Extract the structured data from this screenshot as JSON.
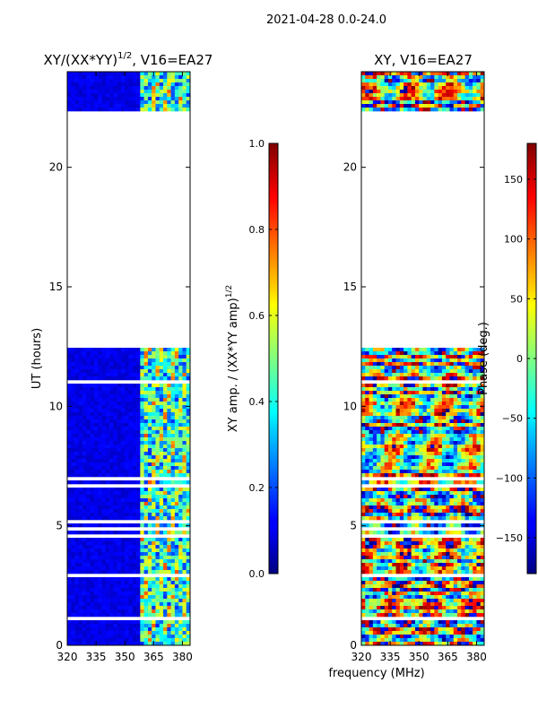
{
  "chart_data": {
    "suptitle": "2021-04-28 0.0-24.0",
    "xlabel": "frequency (MHz)",
    "panels": [
      {
        "title": "XY/(XX*YY)",
        "title_sup": "1/2",
        "title_suffix": ", V16=EA27",
        "type": "heatmap",
        "ylabel": "UT (hours)",
        "xlim": [
          320,
          384
        ],
        "ylim": [
          0,
          24
        ],
        "xticks": [
          320,
          335,
          350,
          365,
          380
        ],
        "yticks": [
          0,
          5,
          10,
          15,
          20
        ],
        "colorbar": {
          "label": "XY amp. / (XX*YY amp)",
          "label_sup": "1/2",
          "range": [
            0.0,
            1.0
          ],
          "ticks": [
            "0.0",
            "0.2",
            "0.4",
            "0.6",
            "0.8",
            "1.0"
          ],
          "tick_values": [
            0.0,
            0.2,
            0.4,
            0.6,
            0.8,
            1.0
          ]
        }
      },
      {
        "title": "XY, V16=EA27",
        "type": "heatmap",
        "xlim": [
          320,
          384
        ],
        "ylim": [
          0,
          24
        ],
        "xticks": [
          320,
          335,
          350,
          365,
          380
        ],
        "yticks": [
          0,
          5,
          10,
          15,
          20
        ],
        "colorbar": {
          "label": "Phase (deg.)",
          "range": [
            -180,
            180
          ],
          "ticks": [
            "−150",
            "−100",
            "−50",
            "0",
            "50",
            "100",
            "150"
          ],
          "tick_values": [
            -150,
            -100,
            -50,
            0,
            50,
            100,
            150
          ]
        }
      }
    ],
    "data_coverage_hours": [
      [
        0.0,
        12.4
      ],
      [
        22.4,
        24.0
      ]
    ],
    "flagged_gap_hours": [
      12.4,
      22.4
    ],
    "rfi_band_mhz": [
      359,
      383
    ],
    "colormap": "jet"
  }
}
